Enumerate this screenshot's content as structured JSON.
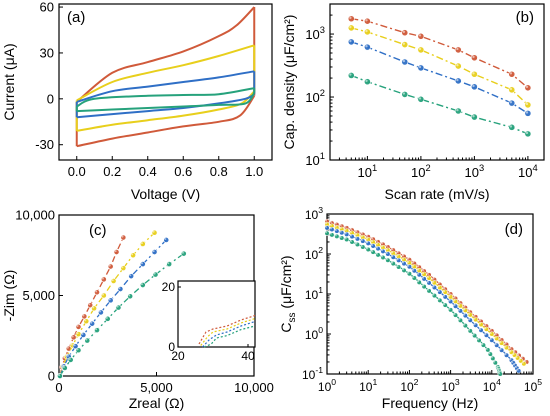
{
  "colors": {
    "red": "#d05a3a",
    "yellow": "#e8cf1c",
    "blue": "#2f6fc6",
    "green": "#26a27c"
  },
  "chart_data": [
    {
      "panel_label": "(a)",
      "type": "line",
      "xlabel": "Voltage (V)",
      "ylabel": "Current (μA)",
      "xlim": [
        -0.1,
        1.1
      ],
      "ylim": [
        -40,
        62
      ],
      "xticks": [
        "0.0",
        "0.2",
        "0.4",
        "0.6",
        "0.8",
        "1.0"
      ],
      "yticks": [
        "-30",
        "0",
        "30",
        "60"
      ],
      "series": [
        {
          "color": "red",
          "upper": [
            [
              0,
              -2
            ],
            [
              0.2,
              17
            ],
            [
              0.4,
              24
            ],
            [
              0.6,
              31
            ],
            [
              0.8,
              41
            ],
            [
              0.9,
              48
            ],
            [
              1.0,
              60
            ]
          ],
          "lower": [
            [
              0,
              -31
            ],
            [
              0.2,
              -26
            ],
            [
              0.4,
              -22
            ],
            [
              0.6,
              -18
            ],
            [
              0.8,
              -15
            ],
            [
              0.92,
              -11
            ],
            [
              1.0,
              2
            ]
          ]
        },
        {
          "color": "yellow",
          "upper": [
            [
              0,
              -1
            ],
            [
              0.2,
              11
            ],
            [
              0.4,
              17
            ],
            [
              0.6,
              22
            ],
            [
              0.8,
              28
            ],
            [
              1.0,
              35
            ]
          ],
          "lower": [
            [
              0,
              -21
            ],
            [
              0.2,
              -17
            ],
            [
              0.4,
              -14
            ],
            [
              0.6,
              -11
            ],
            [
              0.8,
              -7
            ],
            [
              0.93,
              -3
            ],
            [
              1.0,
              5
            ]
          ]
        },
        {
          "color": "blue",
          "upper": [
            [
              0,
              -2
            ],
            [
              0.2,
              5
            ],
            [
              0.4,
              8
            ],
            [
              0.6,
              11
            ],
            [
              0.8,
              14
            ],
            [
              1.0,
              18
            ]
          ],
          "lower": [
            [
              0,
              -12
            ],
            [
              0.2,
              -10
            ],
            [
              0.4,
              -8
            ],
            [
              0.6,
              -6
            ],
            [
              0.8,
              -3
            ],
            [
              0.95,
              0
            ],
            [
              1.0,
              3
            ]
          ]
        },
        {
          "color": "green",
          "upper": [
            [
              0,
              -5
            ],
            [
              0.1,
              0
            ],
            [
              0.4,
              2
            ],
            [
              0.6,
              2.5
            ],
            [
              0.8,
              3
            ],
            [
              1.0,
              7
            ]
          ],
          "lower": [
            [
              0,
              -8
            ],
            [
              0.2,
              -7
            ],
            [
              0.4,
              -6
            ],
            [
              0.6,
              -5
            ],
            [
              0.8,
              -4
            ],
            [
              0.95,
              -3
            ],
            [
              1.0,
              4
            ]
          ]
        }
      ]
    },
    {
      "panel_label": "(b)",
      "type": "line",
      "xlabel": "Scan rate (mV/s)",
      "ylabel": "Cap. density (μF/cm²)",
      "xscale": "log",
      "yscale": "log",
      "xlim": [
        2,
        20000
      ],
      "ylim": [
        10,
        3000
      ],
      "xticks": [
        {
          "v": 10,
          "e": "1"
        },
        {
          "v": 100,
          "e": "2"
        },
        {
          "v": 1000,
          "e": "3"
        },
        {
          "v": 10000,
          "e": "4"
        }
      ],
      "yticks": [
        {
          "v": 10,
          "e": "1"
        },
        {
          "v": 100,
          "e": "2"
        },
        {
          "v": 1000,
          "e": "3"
        }
      ],
      "x": [
        5,
        10,
        50,
        100,
        500,
        1000,
        5000,
        10000
      ],
      "series": [
        {
          "color": "red",
          "values": [
            1750,
            1600,
            1050,
            920,
            560,
            420,
            230,
            140
          ]
        },
        {
          "color": "yellow",
          "values": [
            1250,
            1080,
            680,
            560,
            310,
            230,
            130,
            75
          ]
        },
        {
          "color": "blue",
          "values": [
            750,
            620,
            360,
            290,
            180,
            145,
            80,
            55
          ]
        },
        {
          "color": "green",
          "values": [
            220,
            175,
            110,
            92,
            60,
            48,
            33,
            26
          ]
        }
      ]
    },
    {
      "panel_label": "(c)",
      "type": "scatter",
      "xlabel": "Zreal (Ω)",
      "ylabel": "-Zim (Ω)",
      "xlim": [
        0,
        10000
      ],
      "ylim": [
        0,
        10000
      ],
      "xticks": [
        "0",
        "5,000",
        "10,000"
      ],
      "yticks": [
        "0",
        "5,000",
        "10,000"
      ],
      "series": [
        {
          "color": "red",
          "points": [
            [
              50,
              0
            ],
            [
              150,
              550
            ],
            [
              300,
              1100
            ],
            [
              500,
              1700
            ],
            [
              750,
              2400
            ],
            [
              1000,
              3050
            ],
            [
              1300,
              3700
            ],
            [
              1600,
              4400
            ],
            [
              1950,
              5200
            ],
            [
              2300,
              6000
            ],
            [
              2650,
              6800
            ],
            [
              2950,
              7700
            ],
            [
              3300,
              8600
            ]
          ]
        },
        {
          "color": "yellow",
          "points": [
            [
              50,
              0
            ],
            [
              200,
              600
            ],
            [
              400,
              1200
            ],
            [
              700,
              1900
            ],
            [
              1000,
              2600
            ],
            [
              1400,
              3400
            ],
            [
              1800,
              4200
            ],
            [
              2300,
              5000
            ],
            [
              2800,
              5900
            ],
            [
              3300,
              6700
            ],
            [
              3800,
              7500
            ],
            [
              4300,
              8200
            ],
            [
              4900,
              8900
            ]
          ]
        },
        {
          "color": "blue",
          "points": [
            [
              50,
              0
            ],
            [
              250,
              600
            ],
            [
              500,
              1200
            ],
            [
              850,
              1850
            ],
            [
              1250,
              2550
            ],
            [
              1700,
              3250
            ],
            [
              2150,
              3950
            ],
            [
              2650,
              4700
            ],
            [
              3150,
              5400
            ],
            [
              3700,
              6200
            ],
            [
              4300,
              6950
            ],
            [
              4900,
              7700
            ],
            [
              5500,
              8450
            ]
          ]
        },
        {
          "color": "green",
          "points": [
            [
              50,
              0
            ],
            [
              300,
              500
            ],
            [
              600,
              1000
            ],
            [
              1000,
              1600
            ],
            [
              1450,
              2200
            ],
            [
              1950,
              2850
            ],
            [
              2500,
              3550
            ],
            [
              3050,
              4250
            ],
            [
              3650,
              4950
            ],
            [
              4300,
              5650
            ],
            [
              4950,
              6300
            ],
            [
              5650,
              6950
            ],
            [
              6400,
              7600
            ]
          ]
        }
      ],
      "inset": {
        "xlim": [
          20,
          42
        ],
        "ylim": [
          0,
          22
        ],
        "xticks": [
          "20",
          "40"
        ],
        "yticks": [
          "0",
          "20"
        ],
        "series": [
          {
            "color": "red",
            "points": [
              [
                26,
                1
              ],
              [
                28,
                5
              ],
              [
                30,
                6
              ],
              [
                34,
                7
              ],
              [
                38,
                9
              ],
              [
                42,
                10.5
              ]
            ]
          },
          {
            "color": "yellow",
            "points": [
              [
                26.5,
                0.5
              ],
              [
                28.5,
                3.5
              ],
              [
                30,
                5
              ],
              [
                34,
                6
              ],
              [
                38,
                8
              ],
              [
                42,
                9.5
              ]
            ]
          },
          {
            "color": "blue",
            "points": [
              [
                27,
                0
              ],
              [
                29,
                2.5
              ],
              [
                31,
                4
              ],
              [
                34,
                5
              ],
              [
                38,
                7
              ],
              [
                42,
                8.5
              ]
            ]
          },
          {
            "color": "green",
            "points": [
              [
                27.5,
                0
              ],
              [
                29.5,
                1
              ],
              [
                31,
                3
              ],
              [
                34,
                3.8
              ],
              [
                38,
                5.8
              ],
              [
                42,
                7
              ]
            ]
          }
        ]
      }
    },
    {
      "panel_label": "(d)",
      "type": "line",
      "xlabel": "Frequency (Hz)",
      "ylabel_main": "C",
      "ylabel_sub": "ss",
      "ylabel_rest": " (μF/cm²)",
      "xscale": "log",
      "yscale": "log",
      "xlim": [
        1,
        100000
      ],
      "ylim": [
        0.1,
        1000
      ],
      "xticks": [
        {
          "v": 1,
          "e": "0"
        },
        {
          "v": 10,
          "e": "1"
        },
        {
          "v": 100,
          "e": "2"
        },
        {
          "v": 1000,
          "e": "3"
        },
        {
          "v": 10000,
          "e": "4"
        },
        {
          "v": 100000,
          "e": "5"
        }
      ],
      "yticks": [
        {
          "v": 0.1,
          "e": "-1"
        },
        {
          "v": 1,
          "e": "0"
        },
        {
          "v": 10,
          "e": "1"
        },
        {
          "v": 100,
          "e": "2"
        },
        {
          "v": 1000,
          "e": "3"
        }
      ],
      "series": [
        {
          "color": "red",
          "points": [
            [
              1,
              650
            ],
            [
              3,
              450
            ],
            [
              10,
              270
            ],
            [
              30,
              150
            ],
            [
              100,
              72
            ],
            [
              300,
              30
            ],
            [
              1000,
              10
            ],
            [
              3000,
              3.5
            ],
            [
              10000,
              1.2
            ],
            [
              30000,
              0.42
            ],
            [
              70000,
              0.2
            ]
          ]
        },
        {
          "color": "yellow",
          "points": [
            [
              1,
              550
            ],
            [
              3,
              380
            ],
            [
              10,
              230
            ],
            [
              30,
              125
            ],
            [
              100,
              60
            ],
            [
              300,
              25
            ],
            [
              1000,
              8.5
            ],
            [
              3000,
              3
            ],
            [
              10000,
              1
            ],
            [
              30000,
              0.35
            ],
            [
              60000,
              0.18
            ]
          ]
        },
        {
          "color": "blue",
          "points": [
            [
              1,
              450
            ],
            [
              3,
              310
            ],
            [
              10,
              185
            ],
            [
              30,
              100
            ],
            [
              100,
              48
            ],
            [
              300,
              19
            ],
            [
              1000,
              6.5
            ],
            [
              3000,
              2.2
            ],
            [
              10000,
              0.7
            ],
            [
              30000,
              0.22
            ],
            [
              45000,
              0.12
            ]
          ]
        },
        {
          "color": "green",
          "points": [
            [
              1,
              330
            ],
            [
              3,
              230
            ],
            [
              10,
              130
            ],
            [
              30,
              70
            ],
            [
              100,
              32
            ],
            [
              300,
              12
            ],
            [
              1000,
              4
            ],
            [
              3000,
              1.2
            ],
            [
              8000,
              0.4
            ],
            [
              14000,
              0.15
            ],
            [
              16000,
              0.1
            ]
          ]
        }
      ]
    }
  ]
}
